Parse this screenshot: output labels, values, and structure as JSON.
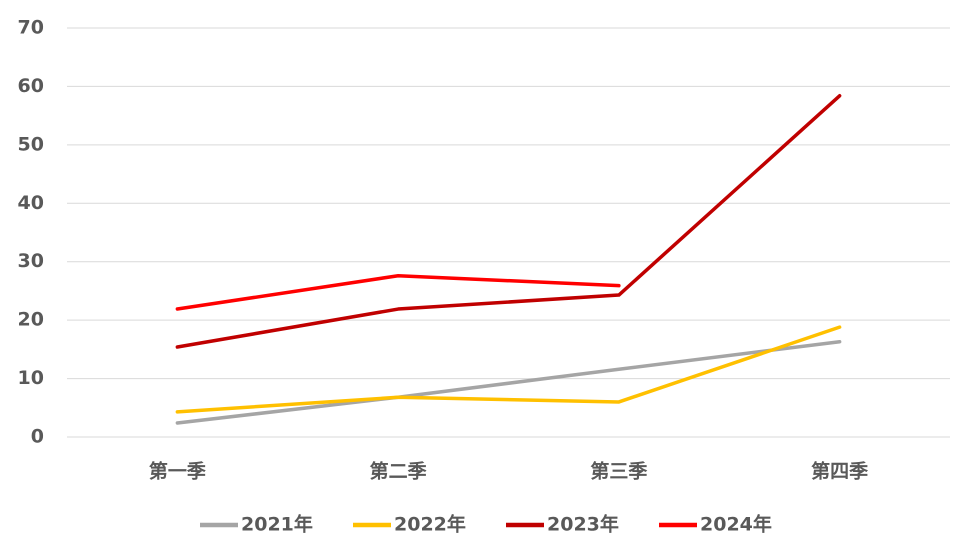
{
  "chart_data": {
    "type": "line",
    "categories": [
      "第一季",
      "第二季",
      "第三季",
      "第四季"
    ],
    "series": [
      {
        "name": "2021年",
        "color": "#a5a5a5",
        "values": [
          2.4,
          6.8,
          11.6,
          16.3
        ]
      },
      {
        "name": "2022年",
        "color": "#ffc000",
        "values": [
          4.3,
          6.8,
          6.0,
          18.8
        ]
      },
      {
        "name": "2023年",
        "color": "#c00000",
        "values": [
          15.4,
          21.9,
          24.3,
          58.4
        ]
      },
      {
        "name": "2024年",
        "color": "#ff0000",
        "values": [
          21.9,
          27.6,
          25.9,
          null
        ]
      }
    ],
    "ylim": [
      0,
      70
    ],
    "yticks": [
      0,
      10,
      20,
      30,
      40,
      50,
      60,
      70
    ],
    "grid": true,
    "legend": "bottom"
  }
}
